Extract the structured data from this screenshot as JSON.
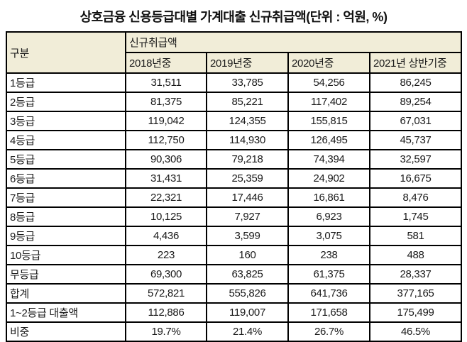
{
  "title": "상호금융 신용등급대별 가계대출 신규취급액(단위 : 억원, %)",
  "chart_data": {
    "type": "table",
    "title": "상호금융 신용등급대별 가계대출 신규취급액(단위 : 억원, %)",
    "unit_note": "단위 : 억원, %",
    "corner_header": "구분",
    "group_header": "신규취급액",
    "year_columns": [
      "2018년중",
      "2019년중",
      "2020년중",
      "2021년 상반기중"
    ],
    "rows": [
      {
        "label": "1등급",
        "values": [
          "31,511",
          "33,785",
          "54,256",
          "86,245"
        ]
      },
      {
        "label": "2등급",
        "values": [
          "81,375",
          "85,221",
          "117,402",
          "89,254"
        ]
      },
      {
        "label": "3등급",
        "values": [
          "119,042",
          "124,355",
          "155,815",
          "67,031"
        ]
      },
      {
        "label": "4등급",
        "values": [
          "112,750",
          "114,930",
          "126,495",
          "45,737"
        ]
      },
      {
        "label": "5등급",
        "values": [
          "90,306",
          "79,218",
          "74,394",
          "32,597"
        ]
      },
      {
        "label": "6등급",
        "values": [
          "31,431",
          "25,359",
          "24,902",
          "16,675"
        ]
      },
      {
        "label": "7등급",
        "values": [
          "22,321",
          "17,446",
          "16,861",
          "8,476"
        ]
      },
      {
        "label": "8등급",
        "values": [
          "10,125",
          "7,927",
          "6,923",
          "1,745"
        ]
      },
      {
        "label": "9등급",
        "values": [
          "4,436",
          "3,599",
          "3,075",
          "581"
        ]
      },
      {
        "label": "10등급",
        "values": [
          "223",
          "160",
          "238",
          "488"
        ]
      },
      {
        "label": "무등급",
        "values": [
          "69,300",
          "63,825",
          "61,375",
          "28,337"
        ]
      },
      {
        "label": "합계",
        "values": [
          "572,821",
          "555,826",
          "641,736",
          "377,165"
        ]
      },
      {
        "label": "1~2등급 대출액",
        "values": [
          "112,886",
          "119,007",
          "171,658",
          "175,499"
        ]
      },
      {
        "label": "비중",
        "values": [
          "19.7%",
          "21.4%",
          "26.7%",
          "46.5%"
        ]
      }
    ],
    "layout": {
      "grid": true,
      "header_background": "#f1edd8",
      "body_background": "#ffffff",
      "border_color": "#000000"
    }
  }
}
